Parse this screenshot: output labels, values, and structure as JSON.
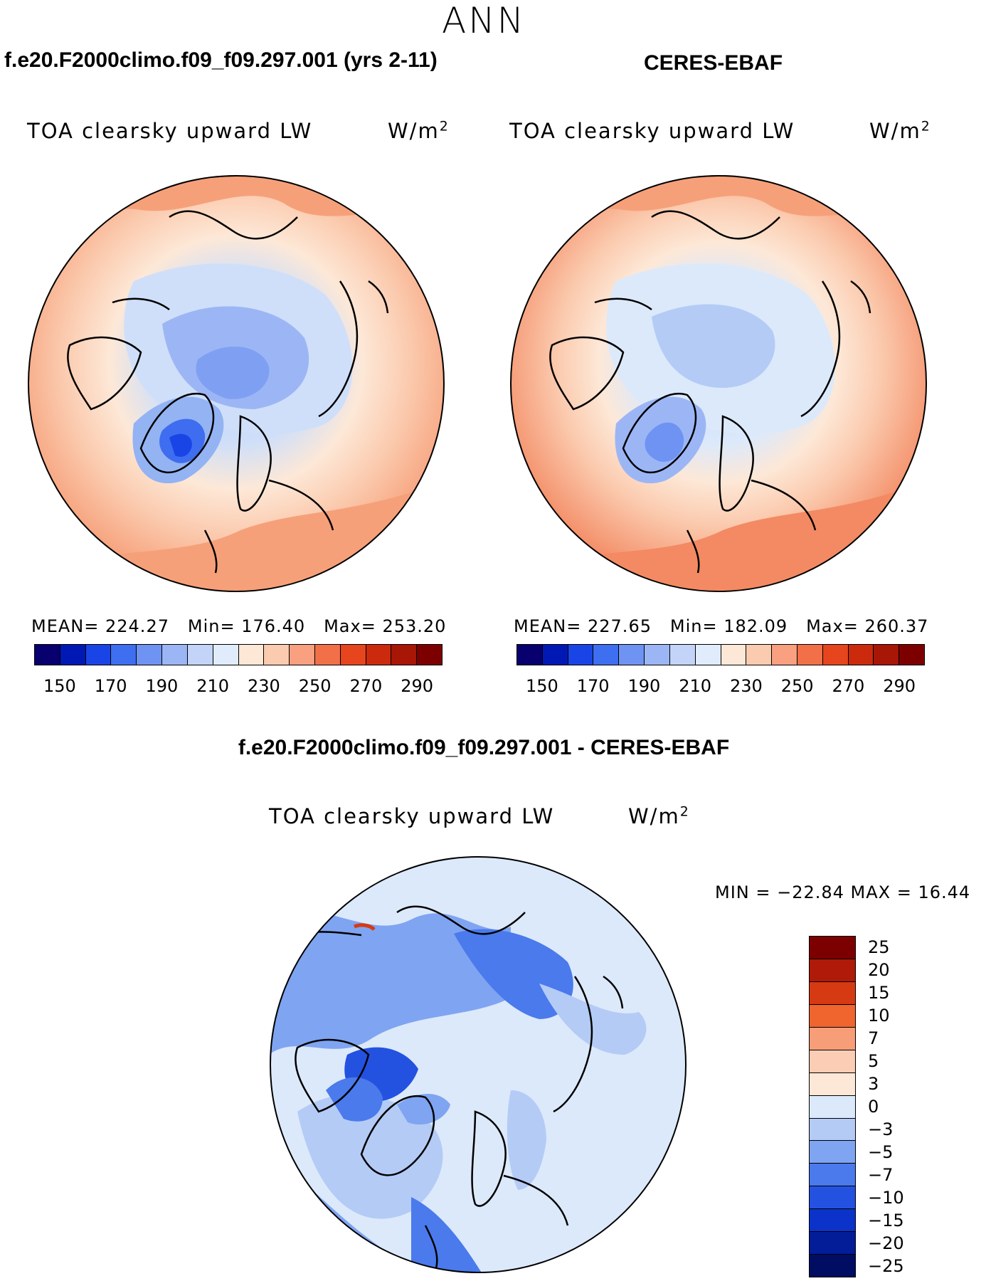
{
  "title": "ANN",
  "colors": {
    "abs_levels": [
      "#08006e",
      "#0019b5",
      "#1a45e6",
      "#3d6ff0",
      "#6e93f2",
      "#9cb6f5",
      "#c3d4f8",
      "#e0ecfb",
      "#fde8d7",
      "#fbcbaf",
      "#f8a07f",
      "#f27048",
      "#e6451e",
      "#cc2a0c",
      "#a81606",
      "#7d0000"
    ],
    "diff_levels": [
      "#7d0000",
      "#b01a08",
      "#d63a12",
      "#f0642e",
      "#f79d78",
      "#fbcdb5",
      "#fde8d7",
      "#dce9fb",
      "#b4cbf6",
      "#7fa4f1",
      "#4a7aec",
      "#2452e0",
      "#0b33c9",
      "#021d97",
      "#000d62"
    ],
    "map_ocean_warm": "#f6a07a",
    "map_ocean_warmer": "#f38a63",
    "map_ice": "#cfdff9",
    "map_cold": "#93b3f3",
    "map_coldest": "#3f6df0"
  },
  "panels": {
    "model": {
      "case_title": "f.e20.F2000climo.f09_f09.297.001 (yrs 2-11)",
      "variable": "TOA clearsky upward LW",
      "units": "W/m",
      "units_exp": "2",
      "mean_label": "MEAN=",
      "mean": "224.27",
      "min_label": "Min=",
      "min": "176.40",
      "max_label": "Max=",
      "max": "253.20"
    },
    "obs": {
      "case_title": "CERES-EBAF",
      "variable": "TOA clearsky upward LW",
      "units": "W/m",
      "units_exp": "2",
      "mean_label": "MEAN=",
      "mean": "227.65",
      "min_label": "Min=",
      "min": "182.09",
      "max_label": "Max=",
      "max": "260.37"
    },
    "diff": {
      "case_title": "f.e20.F2000climo.f09_f09.297.001 - CERES-EBAF",
      "variable": "TOA clearsky upward LW",
      "units": "W/m",
      "units_exp": "2",
      "minmax": "MIN = −22.84 MAX =  16.44"
    }
  },
  "abs_colorbar_ticks": [
    "150",
    "170",
    "190",
    "210",
    "230",
    "250",
    "270",
    "290"
  ],
  "diff_colorbar_ticks": [
    "25",
    "20",
    "15",
    "10",
    "7",
    "5",
    "3",
    "0",
    "−3",
    "−5",
    "−7",
    "−10",
    "−15",
    "−20",
    "−25"
  ]
}
